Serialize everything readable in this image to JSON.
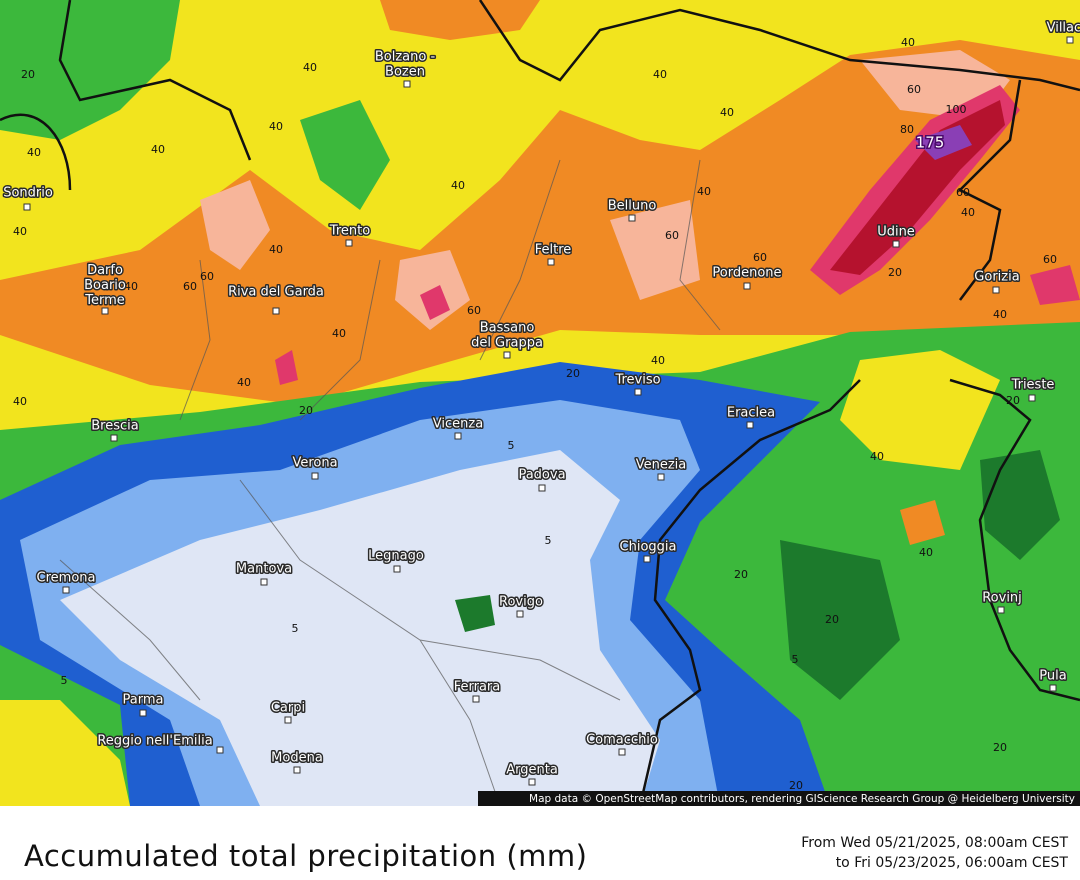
{
  "map": {
    "cities": [
      "Bolzano - Bozen",
      "Sondrio",
      "Trento",
      "Belluno",
      "Feltre",
      "Darfo Boario Terme",
      "Riva del Garda",
      "Pordenone",
      "Udine",
      "Gorizia",
      "Bassano del Grappa",
      "Treviso",
      "Trieste",
      "Eraclea",
      "Brescia",
      "Vicenza",
      "Verona",
      "Padova",
      "Venezia",
      "Chioggia",
      "Legnago",
      "Mantova",
      "Cremona",
      "Rovigo",
      "Rovinj",
      "Pula",
      "Parma",
      "Ferrara",
      "Carpi",
      "Reggio nell'Emilia",
      "Comacchio",
      "Modena",
      "Argenta",
      "Villach"
    ],
    "contour_labels": [
      20,
      40,
      40,
      40,
      40,
      40,
      40,
      40,
      40,
      40,
      40,
      60,
      100,
      80,
      175,
      60,
      40,
      60,
      60,
      20,
      60,
      40,
      40,
      60,
      60,
      40,
      40,
      60,
      40,
      40,
      20,
      20,
      40,
      20,
      40,
      5,
      5,
      40,
      20,
      20,
      5,
      5,
      5,
      20,
      20
    ],
    "attribution": "Map data © OpenStreetMap contributors, rendering GIScience Research Group @ Heidelberg University"
  },
  "footer": {
    "title": "Accumulated total precipitation (mm)",
    "date_from": "From Wed 05/21/2025, 08:00am CEST",
    "date_to": "to Fri 05/23/2025, 06:00am CEST"
  }
}
